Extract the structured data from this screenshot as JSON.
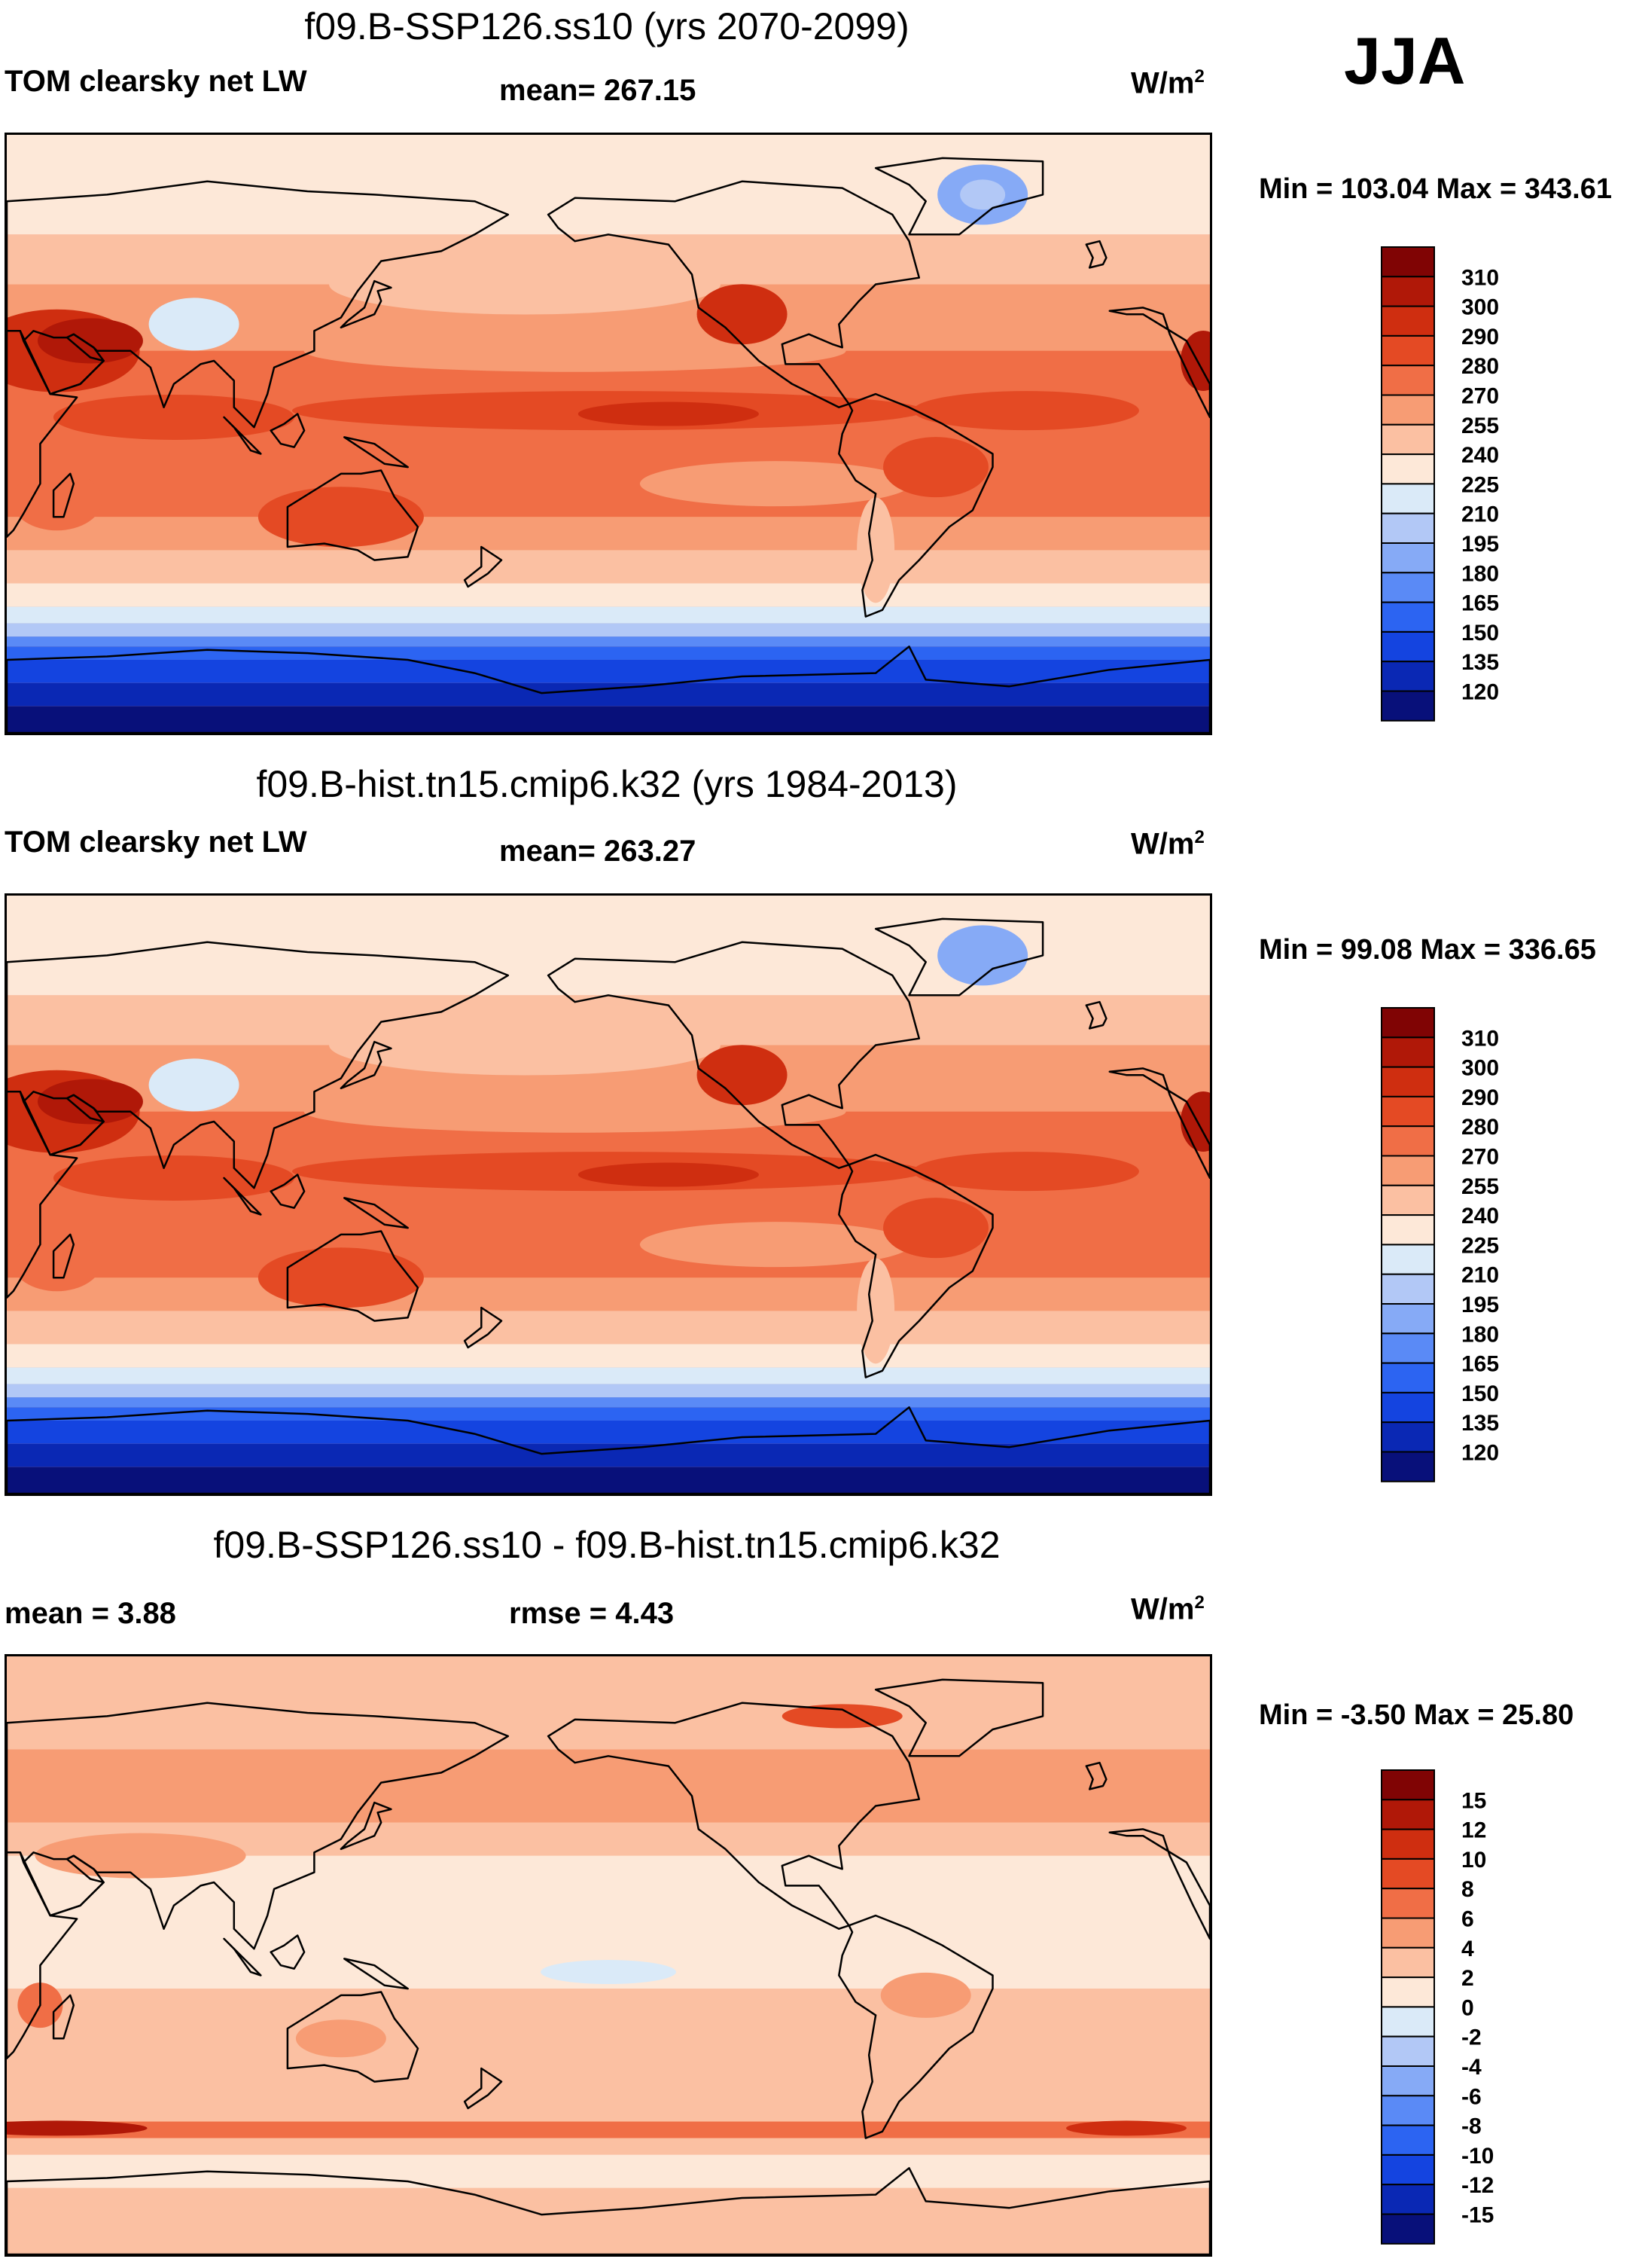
{
  "season": "JJA",
  "unit_text": "W/m",
  "unit_sup": "2",
  "panels": [
    {
      "title": "f09.B-SSP126.ss10 (yrs 2070-2099)",
      "left_label": "TOM clearsky net LW",
      "center_label": "mean= 267.15",
      "minmax": "Min = 103.04 Max = 343.61"
    },
    {
      "title": "f09.B-hist.tn15.cmip6.k32 (yrs 1984-2013)",
      "left_label": "TOM clearsky net LW",
      "center_label": "mean= 263.27",
      "minmax": "Min =  99.08 Max = 336.65"
    },
    {
      "title": "f09.B-SSP126.ss10 - f09.B-hist.tn15.cmip6.k32",
      "left_label": "mean =   3.88",
      "center_label": "rmse =   4.43",
      "minmax": "Min =  -3.50 Max =  25.80"
    }
  ],
  "chart_data": [
    {
      "type": "heatmap",
      "title": "f09.B-SSP126.ss10 (yrs 2070-2099)",
      "variable": "TOM clearsky net LW",
      "mean": 267.15,
      "min": 103.04,
      "max": 343.61,
      "levels": [
        120,
        135,
        150,
        165,
        180,
        195,
        210,
        225,
        240,
        255,
        270,
        280,
        290,
        300,
        310
      ],
      "colors": [
        "#08107a",
        "#0a28b4",
        "#1444e0",
        "#2c64f2",
        "#5a8af6",
        "#86aaf6",
        "#b2c8f6",
        "#daeaf8",
        "#fde8d8",
        "#fbc0a2",
        "#f79c74",
        "#f06e46",
        "#e44a24",
        "#cf2e10",
        "#b01808",
        "#800404"
      ]
    },
    {
      "type": "heatmap",
      "title": "f09.B-hist.tn15.cmip6.k32 (yrs 1984-2013)",
      "variable": "TOM clearsky net LW",
      "mean": 263.27,
      "min": 99.08,
      "max": 336.65,
      "levels": [
        120,
        135,
        150,
        165,
        180,
        195,
        210,
        225,
        240,
        255,
        270,
        280,
        290,
        300,
        310
      ],
      "colors": [
        "#08107a",
        "#0a28b4",
        "#1444e0",
        "#2c64f2",
        "#5a8af6",
        "#86aaf6",
        "#b2c8f6",
        "#daeaf8",
        "#fde8d8",
        "#fbc0a2",
        "#f79c74",
        "#f06e46",
        "#e44a24",
        "#cf2e10",
        "#b01808",
        "#800404"
      ]
    },
    {
      "type": "heatmap",
      "title": "f09.B-SSP126.ss10 - f09.B-hist.tn15.cmip6.k32",
      "mean": 3.88,
      "rmse": 4.43,
      "min": -3.5,
      "max": 25.8,
      "levels": [
        -15,
        -12,
        -10,
        -8,
        -6,
        -4,
        -2,
        0,
        2,
        4,
        6,
        8,
        10,
        12,
        15
      ],
      "colors": [
        "#08107a",
        "#0a28b4",
        "#1444e0",
        "#2c64f2",
        "#5a8af6",
        "#86aaf6",
        "#b2c8f6",
        "#daeaf8",
        "#fde8d8",
        "#fbc0a2",
        "#f79c74",
        "#f06e46",
        "#e44a24",
        "#cf2e10",
        "#b01808",
        "#800404"
      ]
    }
  ]
}
